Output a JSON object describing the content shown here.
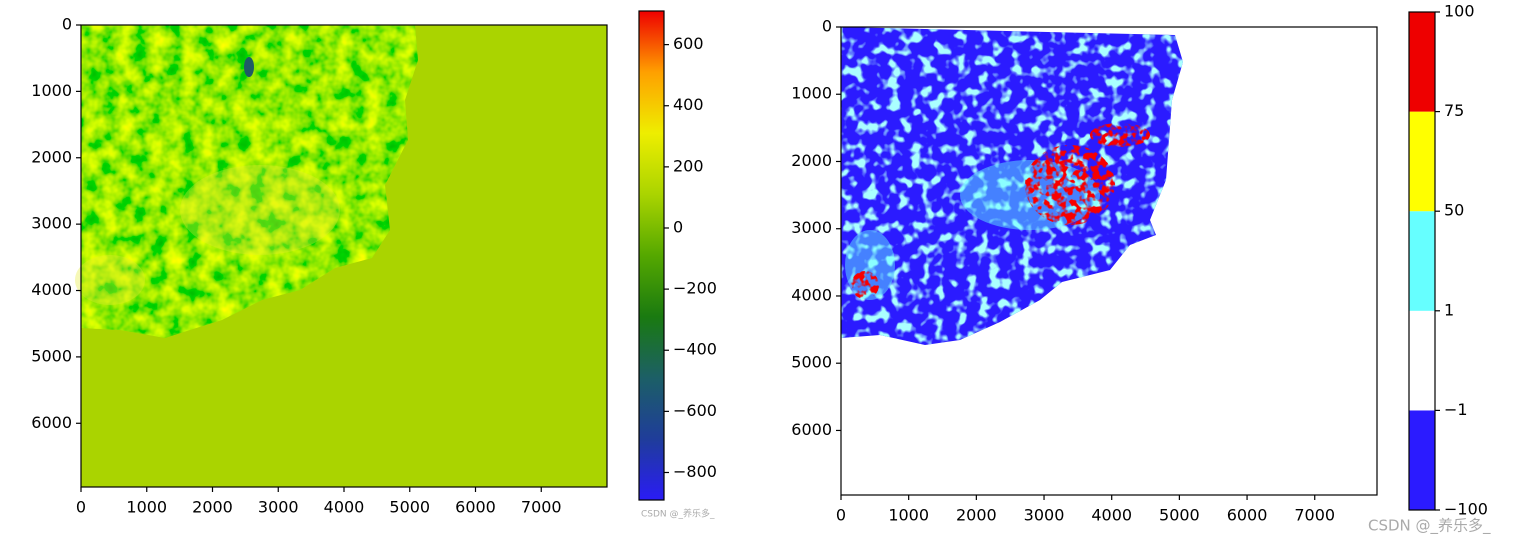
{
  "chart_data": [
    {
      "type": "image",
      "xlim": [
        0,
        8000
      ],
      "ylim": [
        6960,
        0
      ],
      "xticks": [
        0,
        1000,
        2000,
        3000,
        4000,
        5000,
        6000,
        7000
      ],
      "yticks": [
        0,
        1000,
        2000,
        3000,
        4000,
        5000,
        6000
      ],
      "colorbar": {
        "kind": "continuous",
        "lim": [
          -890,
          710
        ],
        "colors": [
          "#2a1cf5",
          "#1f3d9a",
          "#1c5f66",
          "#1a7a10",
          "#55a800",
          "#aad400",
          "#eeee00",
          "#ffa000",
          "#ee0000"
        ],
        "ticks": [
          {
            "value": -800,
            "label": "−800"
          },
          {
            "value": -600,
            "label": "−600"
          },
          {
            "value": -400,
            "label": "−400"
          },
          {
            "value": -200,
            "label": "−200"
          },
          0,
          200,
          400,
          600
        ]
      },
      "watermark": "CSDN @_养乐多_"
    },
    {
      "type": "image",
      "xlim": [
        0,
        7920
      ],
      "ylim": [
        6960,
        0
      ],
      "xticks": [
        0,
        1000,
        2000,
        3000,
        4000,
        5000,
        6000,
        7000
      ],
      "yticks": [
        0,
        1000,
        2000,
        3000,
        4000,
        5000,
        6000
      ],
      "colorbar": {
        "kind": "discrete",
        "boundaries": [
          -100,
          -1,
          1,
          50,
          75,
          100
        ],
        "colors": [
          "#2b1bff",
          "#ffffff",
          "#66ffff",
          "#ffff00",
          "#ee0000"
        ],
        "ticks": [
          {
            "value": -100,
            "label": "−100"
          },
          {
            "value": -1,
            "label": "−1"
          },
          1,
          50,
          75,
          100
        ]
      },
      "watermark": "CSDN @_养乐多_"
    }
  ]
}
